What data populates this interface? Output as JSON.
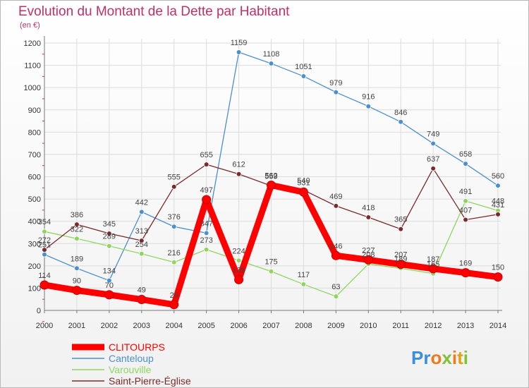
{
  "chart_data": {
    "type": "line",
    "title": "Evolution du Montant de la Dette par Habitant",
    "subtitle": "(en €)",
    "x": [
      2000,
      2001,
      2002,
      2003,
      2004,
      2005,
      2006,
      2007,
      2008,
      2009,
      2010,
      2011,
      2012,
      2013,
      2014
    ],
    "ylim": [
      0,
      1200
    ],
    "yticks": [
      0,
      100,
      200,
      300,
      400,
      500,
      600,
      700,
      800,
      900,
      1000,
      1100,
      1200
    ],
    "grid": true,
    "legend_position": "bottom-left",
    "series": [
      {
        "name": "CLITOURPS",
        "color": "#ff0000",
        "values": [
          114,
          90,
          70,
          49,
          26,
          497,
          138,
          562,
          531,
          246,
          227,
          207,
          187,
          169,
          150
        ]
      },
      {
        "name": "Canteloup",
        "color": "#4a8fd0",
        "values": [
          251,
          189,
          134,
          442,
          376,
          347,
          1159,
          1108,
          1051,
          979,
          916,
          846,
          749,
          658,
          560
        ]
      },
      {
        "name": "Varouville",
        "color": "#8fd65f",
        "values": [
          354,
          322,
          289,
          254,
          216,
          273,
          224,
          175,
          117,
          63,
          208,
          189,
          165,
          491,
          448
        ]
      },
      {
        "name": "Saint-Pierre-Église",
        "color": "#7a2a2a",
        "values": [
          272,
          386,
          345,
          313,
          555,
          655,
          612,
          559,
          540,
          469,
          418,
          365,
          637,
          407,
          431
        ]
      }
    ]
  },
  "brand": "Proxiti"
}
